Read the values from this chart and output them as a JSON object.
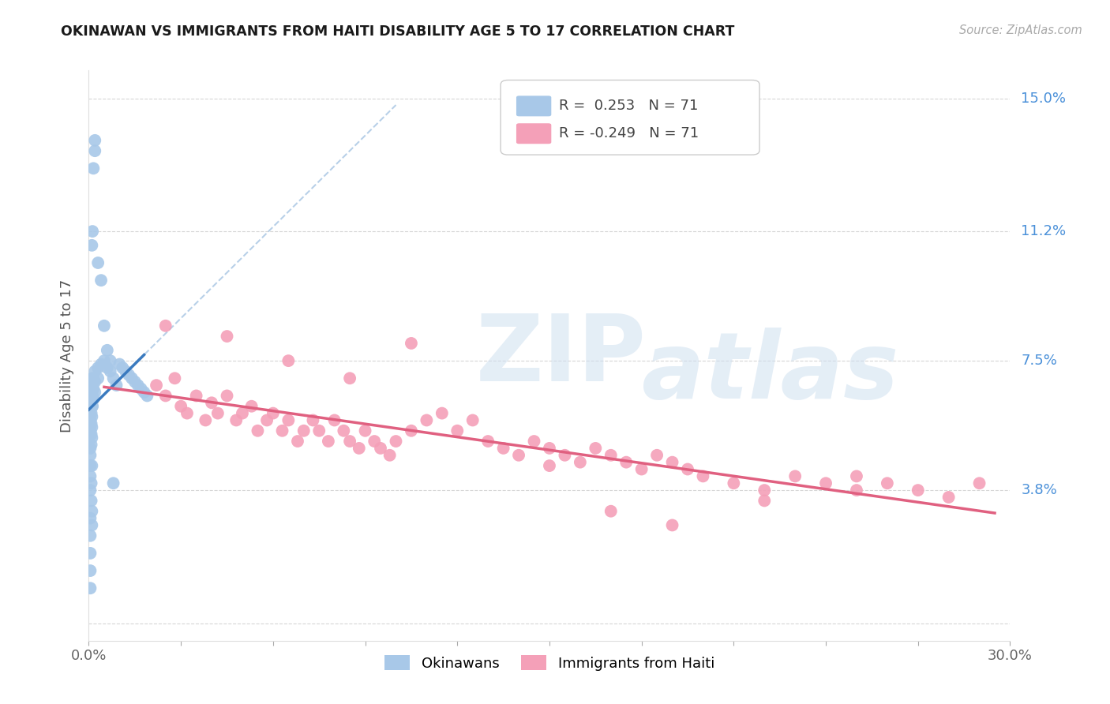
{
  "title": "OKINAWAN VS IMMIGRANTS FROM HAITI DISABILITY AGE 5 TO 17 CORRELATION CHART",
  "source": "Source: ZipAtlas.com",
  "ylabel": "Disability Age 5 to 17",
  "xlim": [
    0.0,
    0.3
  ],
  "ylim": [
    -0.005,
    0.158
  ],
  "ytick_values": [
    0.0,
    0.038,
    0.075,
    0.112,
    0.15
  ],
  "ytick_labels": [
    "",
    "3.8%",
    "7.5%",
    "11.2%",
    "15.0%"
  ],
  "xtick_values": [
    0.0,
    0.03,
    0.06,
    0.09,
    0.12,
    0.15,
    0.18,
    0.21,
    0.24,
    0.27,
    0.3
  ],
  "xtick_labels": [
    "0.0%",
    "",
    "",
    "",
    "",
    "",
    "",
    "",
    "",
    "",
    "30.0%"
  ],
  "grid_color": "#cccccc",
  "background_color": "#ffffff",
  "legend_r_blue": "0.253",
  "legend_n_blue": "71",
  "legend_r_pink": "-0.249",
  "legend_n_pink": "71",
  "blue_color": "#a8c8e8",
  "pink_color": "#f4a0b8",
  "blue_line_color": "#3a7abf",
  "pink_line_color": "#e06080",
  "blue_dashed_color": "#b8d0e8",
  "okinawan_x": [
    0.0005,
    0.0005,
    0.0005,
    0.0005,
    0.0005,
    0.0005,
    0.0005,
    0.0005,
    0.0005,
    0.0005,
    0.0008,
    0.0008,
    0.0008,
    0.0008,
    0.0008,
    0.001,
    0.001,
    0.001,
    0.001,
    0.001,
    0.001,
    0.001,
    0.001,
    0.0012,
    0.0012,
    0.0012,
    0.0015,
    0.0015,
    0.0015,
    0.002,
    0.002,
    0.002,
    0.003,
    0.003,
    0.004,
    0.005,
    0.006,
    0.007,
    0.008,
    0.009,
    0.01,
    0.011,
    0.012,
    0.013,
    0.014,
    0.015,
    0.016,
    0.017,
    0.018,
    0.019,
    0.0005,
    0.0005,
    0.0005,
    0.0005,
    0.0005,
    0.0008,
    0.0008,
    0.001,
    0.001,
    0.001,
    0.001,
    0.0012,
    0.0015,
    0.002,
    0.002,
    0.003,
    0.004,
    0.005,
    0.006,
    0.007,
    0.008
  ],
  "okinawan_y": [
    0.062,
    0.065,
    0.068,
    0.058,
    0.055,
    0.05,
    0.048,
    0.045,
    0.042,
    0.038,
    0.06,
    0.063,
    0.057,
    0.054,
    0.051,
    0.065,
    0.062,
    0.059,
    0.056,
    0.053,
    0.07,
    0.067,
    0.064,
    0.068,
    0.065,
    0.062,
    0.07,
    0.067,
    0.064,
    0.072,
    0.069,
    0.066,
    0.073,
    0.07,
    0.074,
    0.075,
    0.073,
    0.072,
    0.07,
    0.068,
    0.074,
    0.073,
    0.072,
    0.071,
    0.07,
    0.069,
    0.068,
    0.067,
    0.066,
    0.065,
    0.03,
    0.025,
    0.02,
    0.015,
    0.01,
    0.035,
    0.04,
    0.045,
    0.032,
    0.028,
    0.108,
    0.112,
    0.13,
    0.138,
    0.135,
    0.103,
    0.098,
    0.085,
    0.078,
    0.075,
    0.04
  ],
  "haiti_x": [
    0.022,
    0.025,
    0.028,
    0.03,
    0.032,
    0.035,
    0.038,
    0.04,
    0.042,
    0.045,
    0.048,
    0.05,
    0.053,
    0.055,
    0.058,
    0.06,
    0.063,
    0.065,
    0.068,
    0.07,
    0.073,
    0.075,
    0.078,
    0.08,
    0.083,
    0.085,
    0.088,
    0.09,
    0.093,
    0.095,
    0.098,
    0.1,
    0.105,
    0.11,
    0.115,
    0.12,
    0.125,
    0.13,
    0.135,
    0.14,
    0.145,
    0.15,
    0.155,
    0.16,
    0.165,
    0.17,
    0.175,
    0.18,
    0.185,
    0.19,
    0.195,
    0.2,
    0.21,
    0.22,
    0.23,
    0.24,
    0.25,
    0.26,
    0.27,
    0.28,
    0.29,
    0.025,
    0.045,
    0.065,
    0.085,
    0.105,
    0.15,
    0.17,
    0.19,
    0.22,
    0.25
  ],
  "haiti_y": [
    0.068,
    0.065,
    0.07,
    0.062,
    0.06,
    0.065,
    0.058,
    0.063,
    0.06,
    0.065,
    0.058,
    0.06,
    0.062,
    0.055,
    0.058,
    0.06,
    0.055,
    0.058,
    0.052,
    0.055,
    0.058,
    0.055,
    0.052,
    0.058,
    0.055,
    0.052,
    0.05,
    0.055,
    0.052,
    0.05,
    0.048,
    0.052,
    0.055,
    0.058,
    0.06,
    0.055,
    0.058,
    0.052,
    0.05,
    0.048,
    0.052,
    0.05,
    0.048,
    0.046,
    0.05,
    0.048,
    0.046,
    0.044,
    0.048,
    0.046,
    0.044,
    0.042,
    0.04,
    0.038,
    0.042,
    0.04,
    0.038,
    0.04,
    0.038,
    0.036,
    0.04,
    0.085,
    0.082,
    0.075,
    0.07,
    0.08,
    0.045,
    0.032,
    0.028,
    0.035,
    0.042
  ]
}
